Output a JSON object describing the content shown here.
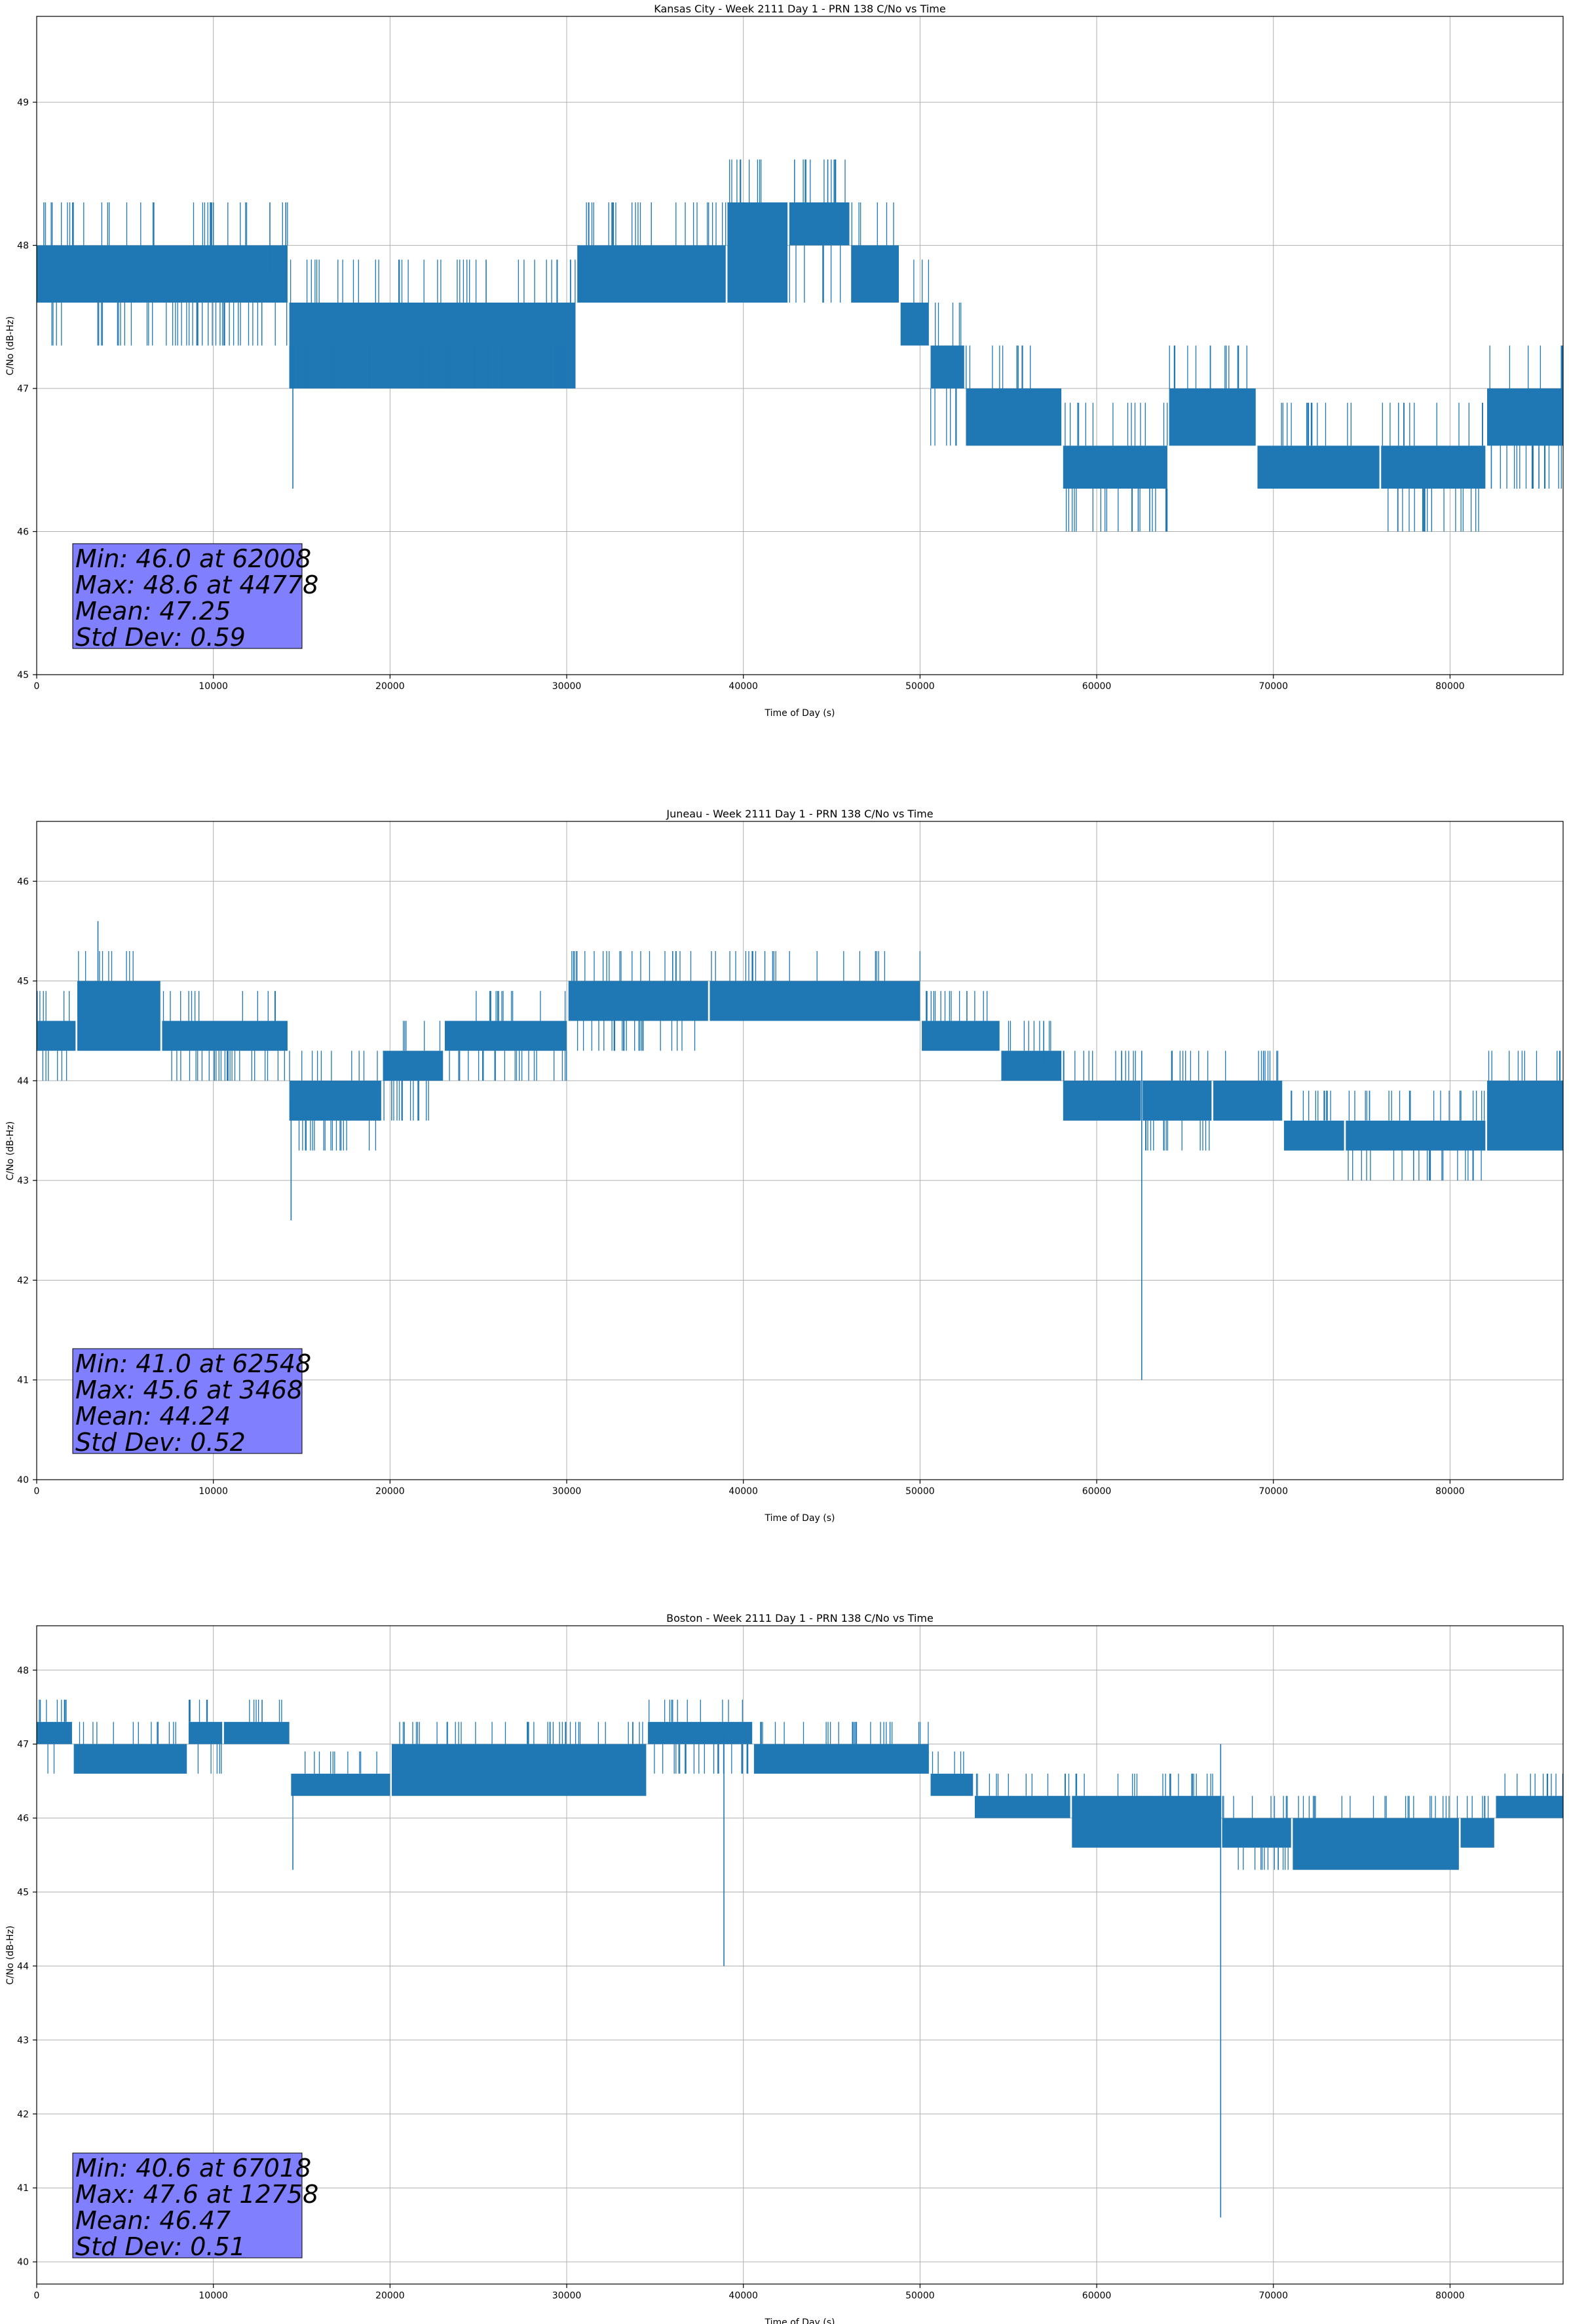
{
  "chart_data": [
    {
      "type": "line",
      "title": "Kansas City - Week 2111 Day 1 - PRN 138 C/No vs Time",
      "xlabel": "Time of Day (s)",
      "ylabel": "C/No (dB-Hz)",
      "xlim": [
        0,
        86400
      ],
      "ylim": [
        45,
        49.6
      ],
      "xticks": [
        0,
        10000,
        20000,
        30000,
        40000,
        50000,
        60000,
        70000,
        80000
      ],
      "yticks": [
        45,
        46,
        47,
        48,
        49
      ],
      "grid": true,
      "color": "#1f77b4",
      "stats_box_color": "#8080ff",
      "stats": [
        "Min: 46.0 at 62008",
        "Max: 48.6 at 44778",
        "Mean: 47.25",
        "Std Dev: 0.59"
      ],
      "series": [
        {
          "name": "C/No",
          "segments": [
            {
              "x": [
                0,
                2000,
                4000,
                6500,
                12000,
                14200
              ],
              "low": 47.6,
              "high": 48.0,
              "dip": 47.3
            },
            {
              "x": [
                14300,
                20000,
                25000,
                30500
              ],
              "low": 47.0,
              "high": 47.6,
              "dip": 47.3
            },
            {
              "x": [
                30600,
                36000,
                39000
              ],
              "low": 47.6,
              "high": 48.0,
              "dip": 47.6
            },
            {
              "x": [
                39100,
                42500
              ],
              "low": 47.6,
              "high": 48.3,
              "dip": 47.6
            },
            {
              "x": [
                42600,
                46000
              ],
              "low": 48.0,
              "high": 48.3,
              "dip": 47.6
            },
            {
              "x": [
                46100,
                48800
              ],
              "low": 47.6,
              "high": 48.0,
              "dip": 47.6
            },
            {
              "x": [
                48900,
                50500
              ],
              "low": 47.3,
              "high": 47.6,
              "dip": 47.3
            },
            {
              "x": [
                50600,
                52500
              ],
              "low": 47.0,
              "high": 47.3,
              "dip": 46.6
            },
            {
              "x": [
                52600,
                58000
              ],
              "low": 46.6,
              "high": 47.0,
              "dip": 46.6
            },
            {
              "x": [
                58100,
                64000
              ],
              "low": 46.3,
              "high": 46.6,
              "dip": 46.0
            },
            {
              "x": [
                64100,
                69000
              ],
              "low": 46.6,
              "high": 47.0,
              "dip": 46.6
            },
            {
              "x": [
                69100,
                76000
              ],
              "low": 46.3,
              "high": 46.6,
              "dip": 46.3
            },
            {
              "x": [
                76100,
                82000
              ],
              "low": 46.3,
              "high": 46.6,
              "dip": 46.0
            },
            {
              "x": [
                82100,
                86400
              ],
              "low": 46.6,
              "high": 47.0,
              "dip": 46.3
            }
          ],
          "spikes": [
            {
              "x": 14500,
              "y": 46.3
            },
            {
              "x": 10000,
              "y": 48.3
            },
            {
              "x": 13200,
              "y": 48.3
            },
            {
              "x": 14100,
              "y": 48.3
            },
            {
              "x": 44778,
              "y": 48.6
            },
            {
              "x": 62008,
              "y": 46.0
            },
            {
              "x": 63000,
              "y": 46.0
            },
            {
              "x": 86300,
              "y": 47.3
            }
          ]
        }
      ]
    },
    {
      "type": "line",
      "title": "Juneau - Week 2111 Day 1 - PRN 138 C/No vs Time",
      "xlabel": "Time of Day (s)",
      "ylabel": "C/No (dB-Hz)",
      "xlim": [
        0,
        86400
      ],
      "ylim": [
        40,
        46.6
      ],
      "xticks": [
        0,
        10000,
        20000,
        30000,
        40000,
        50000,
        60000,
        70000,
        80000
      ],
      "yticks": [
        40,
        41,
        42,
        43,
        44,
        45,
        46
      ],
      "grid": true,
      "color": "#1f77b4",
      "stats_box_color": "#8080ff",
      "stats": [
        "Min: 41.0 at 62548",
        "Max: 45.6 at 3468",
        "Mean: 44.24",
        "Std Dev: 0.52"
      ],
      "series": [
        {
          "name": "C/No",
          "segments": [
            {
              "x": [
                0,
                2200
              ],
              "low": 44.3,
              "high": 44.6,
              "dip": 44.0
            },
            {
              "x": [
                2300,
                7000
              ],
              "low": 44.3,
              "high": 45.0,
              "dip": 44.3
            },
            {
              "x": [
                7100,
                14200
              ],
              "low": 44.3,
              "high": 44.6,
              "dip": 44.0
            },
            {
              "x": [
                14300,
                19500
              ],
              "low": 43.6,
              "high": 44.0,
              "dip": 43.3
            },
            {
              "x": [
                19600,
                23000
              ],
              "low": 44.0,
              "high": 44.3,
              "dip": 43.6
            },
            {
              "x": [
                23100,
                30000
              ],
              "low": 44.3,
              "high": 44.6,
              "dip": 44.0
            },
            {
              "x": [
                30100,
                38000
              ],
              "low": 44.6,
              "high": 45.0,
              "dip": 44.3
            },
            {
              "x": [
                38100,
                50000
              ],
              "low": 44.6,
              "high": 45.0,
              "dip": 44.6
            },
            {
              "x": [
                50100,
                54500
              ],
              "low": 44.3,
              "high": 44.6,
              "dip": 44.3
            },
            {
              "x": [
                54600,
                58000
              ],
              "low": 44.0,
              "high": 44.3,
              "dip": 44.0
            },
            {
              "x": [
                58100,
                62500
              ],
              "low": 43.6,
              "high": 44.0,
              "dip": 43.6
            },
            {
              "x": [
                62600,
                66500
              ],
              "low": 43.6,
              "high": 44.0,
              "dip": 43.3
            },
            {
              "x": [
                66600,
                70500
              ],
              "low": 43.6,
              "high": 44.0,
              "dip": 43.6
            },
            {
              "x": [
                70600,
                74000
              ],
              "low": 43.3,
              "high": 43.6,
              "dip": 43.3
            },
            {
              "x": [
                74100,
                82000
              ],
              "low": 43.3,
              "high": 43.6,
              "dip": 43.0
            },
            {
              "x": [
                82100,
                86400
              ],
              "low": 43.3,
              "high": 44.0,
              "dip": 43.3
            }
          ],
          "spikes": [
            {
              "x": 3468,
              "y": 45.6
            },
            {
              "x": 14400,
              "y": 42.6
            },
            {
              "x": 62548,
              "y": 41.0
            },
            {
              "x": 40500,
              "y": 45.3
            },
            {
              "x": 36000,
              "y": 45.3
            },
            {
              "x": 57000,
              "y": 44.6
            }
          ]
        }
      ]
    },
    {
      "type": "line",
      "title": "Boston - Week 2111 Day 1 - PRN 138 C/No vs Time",
      "xlabel": "Time of Day (s)",
      "ylabel": "C/No (dB-Hz)",
      "xlim": [
        0,
        86400
      ],
      "ylim": [
        39.7,
        48.6
      ],
      "xticks": [
        0,
        10000,
        20000,
        30000,
        40000,
        50000,
        60000,
        70000,
        80000
      ],
      "yticks": [
        40,
        41,
        42,
        43,
        44,
        45,
        46,
        47,
        48
      ],
      "grid": true,
      "color": "#1f77b4",
      "stats_box_color": "#8080ff",
      "stats": [
        "Min: 40.6 at 67018",
        "Max: 47.6 at 12758",
        "Mean: 46.47",
        "Std Dev: 0.51"
      ],
      "series": [
        {
          "name": "C/No",
          "segments": [
            {
              "x": [
                0,
                2000
              ],
              "low": 47.0,
              "high": 47.3,
              "dip": 46.6
            },
            {
              "x": [
                2100,
                8500
              ],
              "low": 46.6,
              "high": 47.0,
              "dip": 46.6
            },
            {
              "x": [
                8600,
                10500
              ],
              "low": 47.0,
              "high": 47.3,
              "dip": 46.6
            },
            {
              "x": [
                10600,
                14300
              ],
              "low": 47.0,
              "high": 47.3,
              "dip": 47.0
            },
            {
              "x": [
                14400,
                20000
              ],
              "low": 46.3,
              "high": 46.6,
              "dip": 46.3
            },
            {
              "x": [
                20100,
                34500
              ],
              "low": 46.3,
              "high": 47.0,
              "dip": 46.3
            },
            {
              "x": [
                34600,
                40500
              ],
              "low": 47.0,
              "high": 47.3,
              "dip": 46.6
            },
            {
              "x": [
                40600,
                50500
              ],
              "low": 46.6,
              "high": 47.0,
              "dip": 46.6
            },
            {
              "x": [
                50600,
                53000
              ],
              "low": 46.3,
              "high": 46.6,
              "dip": 46.3
            },
            {
              "x": [
                53100,
                58500
              ],
              "low": 46.0,
              "high": 46.3,
              "dip": 46.0
            },
            {
              "x": [
                58600,
                67000
              ],
              "low": 45.6,
              "high": 46.3,
              "dip": 45.6
            },
            {
              "x": [
                67100,
                71000
              ],
              "low": 45.6,
              "high": 46.0,
              "dip": 45.3
            },
            {
              "x": [
                71100,
                80500
              ],
              "low": 45.3,
              "high": 46.0,
              "dip": 45.3
            },
            {
              "x": [
                80600,
                82500
              ],
              "low": 45.6,
              "high": 46.0,
              "dip": 45.6
            },
            {
              "x": [
                82600,
                86400
              ],
              "low": 46.0,
              "high": 46.3,
              "dip": 46.0
            }
          ],
          "spikes": [
            {
              "x": 12758,
              "y": 47.6
            },
            {
              "x": 14500,
              "y": 45.3
            },
            {
              "x": 38900,
              "y": 44.0
            },
            {
              "x": 67018,
              "y": 40.6
            },
            {
              "x": 85500,
              "y": 46.6
            }
          ]
        }
      ]
    }
  ]
}
